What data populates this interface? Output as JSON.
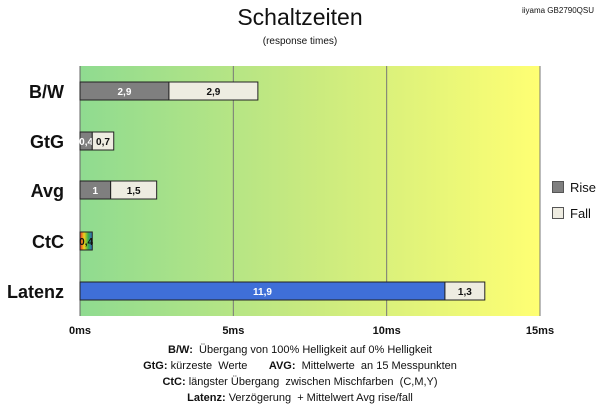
{
  "title": "Schaltzeiten",
  "subtitle": "(response times)",
  "model": "iiyama GB2790QSU",
  "chart_data": {
    "type": "bar",
    "orientation": "horizontal",
    "stacked": true,
    "categories": [
      "B/W",
      "GtG",
      "Avg",
      "CtC",
      "Latenz"
    ],
    "series": [
      {
        "name": "Rise",
        "values": [
          2.9,
          0.4,
          1.0,
          null,
          null
        ],
        "labels": [
          "2,9",
          "0,4",
          "1",
          "",
          ""
        ],
        "color": "#7f7f7f"
      },
      {
        "name": "Fall",
        "values": [
          2.9,
          0.7,
          1.5,
          null,
          1.3
        ],
        "labels": [
          "2,9",
          "0,7",
          "1,5",
          "",
          "1,3"
        ],
        "color": "#eeece1"
      }
    ],
    "ctc": {
      "value": 0.4,
      "label": "0,4"
    },
    "latency": {
      "value": 11.9,
      "label": "11,9",
      "color": "#3f6fd8"
    },
    "xlim": [
      0,
      15
    ],
    "xticks": [
      0,
      5,
      10,
      15
    ],
    "xtick_labels": [
      "0ms",
      "5ms",
      "10ms",
      "15ms"
    ],
    "grid": true,
    "legend_position": "right",
    "background_gradient": [
      "#8fdb90",
      "#ffff73"
    ]
  },
  "legend": [
    {
      "label": "Rise",
      "color": "#7f7f7f"
    },
    {
      "label": "Fall",
      "color": "#eeece1"
    }
  ],
  "footnotes": [
    {
      "bold": "B/W:",
      "text": "  Übergang von 100% Helligkeit auf 0% Helligkeit"
    },
    {
      "bold": "GtG:",
      "text": " kürzeste  Werte       ",
      "bold2": "AVG:",
      "text2": "  Mittelwerte  an 15 Messpunkten"
    },
    {
      "bold": "CtC:",
      "text": " längster Übergang  zwischen Mischfarben  (C,M,Y)"
    },
    {
      "bold": "Latenz:",
      "text": " Verzögerung  + Mittelwert Avg rise/fall"
    }
  ]
}
